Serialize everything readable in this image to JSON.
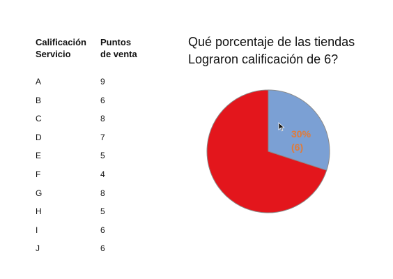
{
  "table": {
    "col_headers": [
      "Calificación\nServicio",
      "Puntos\nde venta"
    ],
    "rows": [
      {
        "grade": "A",
        "stores": "9"
      },
      {
        "grade": "B",
        "stores": "6"
      },
      {
        "grade": "C",
        "stores": "8"
      },
      {
        "grade": "D",
        "stores": "7"
      },
      {
        "grade": "E",
        "stores": "5"
      },
      {
        "grade": "F",
        "stores": "4"
      },
      {
        "grade": "G",
        "stores": "8"
      },
      {
        "grade": "H",
        "stores": "5"
      },
      {
        "grade": "I",
        "stores": "6"
      },
      {
        "grade": "J",
        "stores": "6"
      }
    ]
  },
  "chart_data": {
    "type": "pie",
    "title": "Qué porcentaje de las tiendas\nLograron calificación de 6?",
    "slices": [
      {
        "value": 30,
        "color": "#7ba0d4",
        "label_line1": "30%",
        "label_line2": "(6)"
      },
      {
        "value": 70,
        "color": "#e3161c"
      }
    ],
    "label_color": "#e07b39",
    "stroke_color": "#8a8a8a"
  },
  "icons": {
    "cursor": "mouse-pointer-icon"
  }
}
